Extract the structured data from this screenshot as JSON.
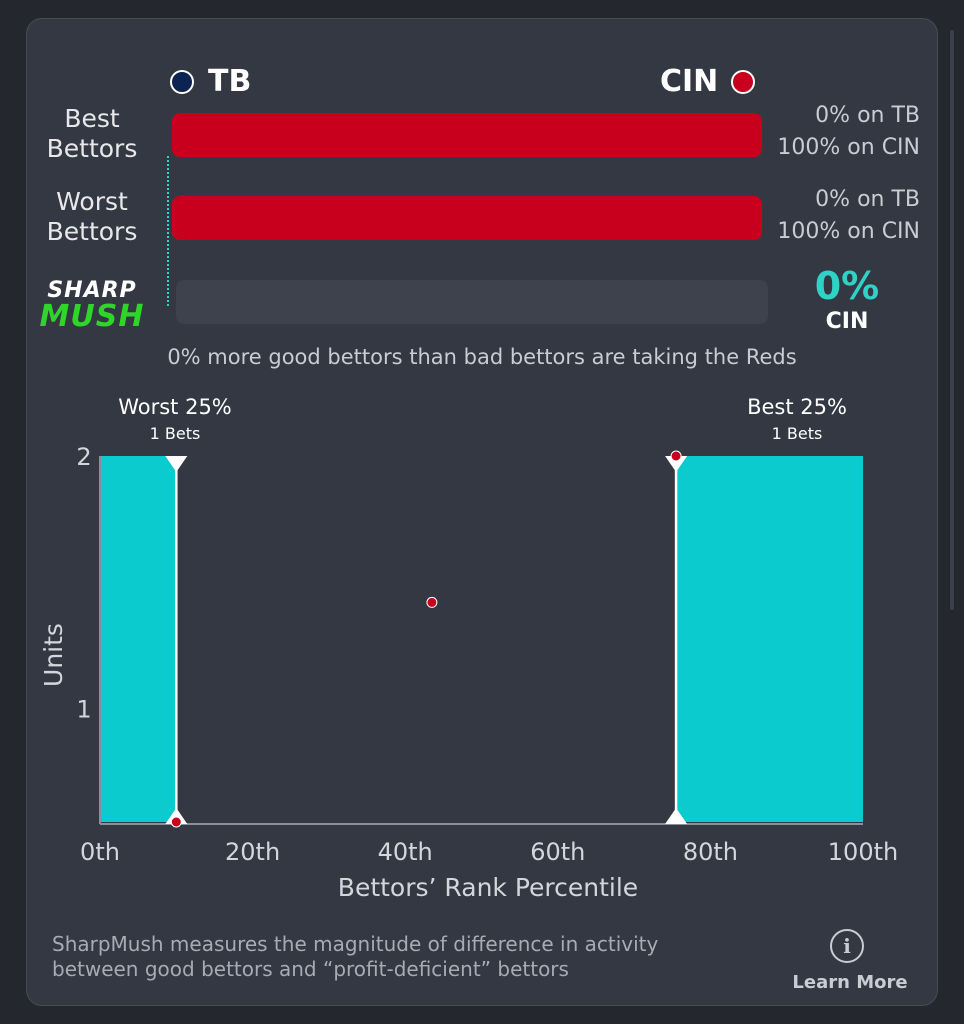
{
  "teams": {
    "left": {
      "abbr": "TB",
      "color": "#0d2352"
    },
    "right": {
      "abbr": "CIN",
      "color": "#c8001e"
    }
  },
  "rows": [
    {
      "label": "Best\nBettors",
      "pct_left_text": "0% on TB",
      "pct_right_text": "100% on CIN",
      "right_share": 1.0
    },
    {
      "label": "Worst\nBettors",
      "pct_left_text": "0% on TB",
      "pct_right_text": "100% on CIN",
      "right_share": 1.0
    }
  ],
  "sharpmush": {
    "logo_top": "SHARP",
    "logo_bottom": "MUSH",
    "value": "0%",
    "team": "CIN",
    "value_color": "#2ed3c6",
    "summary": "0% more good bettors than bad bettors are taking the Reds"
  },
  "chart_data": {
    "type": "area",
    "x_label": "Bettors’ Rank Percentile",
    "y_label": "Units",
    "x_ticks": [
      "0th",
      "20th",
      "40th",
      "60th",
      "80th",
      "100th"
    ],
    "x_tick_values": [
      0,
      20,
      40,
      60,
      80,
      100
    ],
    "y_ticks": [
      "1",
      "2"
    ],
    "y_tick_values": [
      1,
      2
    ],
    "xlim": [
      0,
      100
    ],
    "ylim": [
      0.55,
      2
    ],
    "fill_color": "#0ccbcf",
    "regions": [
      {
        "name": "Worst 25%",
        "sub": "1 Bets",
        "x_start": 0,
        "x_end": 10,
        "value": 2
      },
      {
        "name": "Best 25%",
        "sub": "1 Bets",
        "x_start": 75.5,
        "x_end": 100,
        "value": 2
      }
    ],
    "markers": [
      {
        "x": 10,
        "label_top": "Worst 25%"
      },
      {
        "x": 75.5,
        "label_top": "Best 25%"
      }
    ],
    "points": [
      {
        "x": 10,
        "y": 0.55
      },
      {
        "x": 43.5,
        "y": 1.42
      },
      {
        "x": 75.5,
        "y": 2
      }
    ],
    "point_color": "#c8001e"
  },
  "footer": {
    "line1": "SharpMush measures the magnitude of difference in activity",
    "line2": "between good bettors and “profit-deficient” bettors",
    "learn_more": "Learn More",
    "info_icon": "info-icon"
  }
}
